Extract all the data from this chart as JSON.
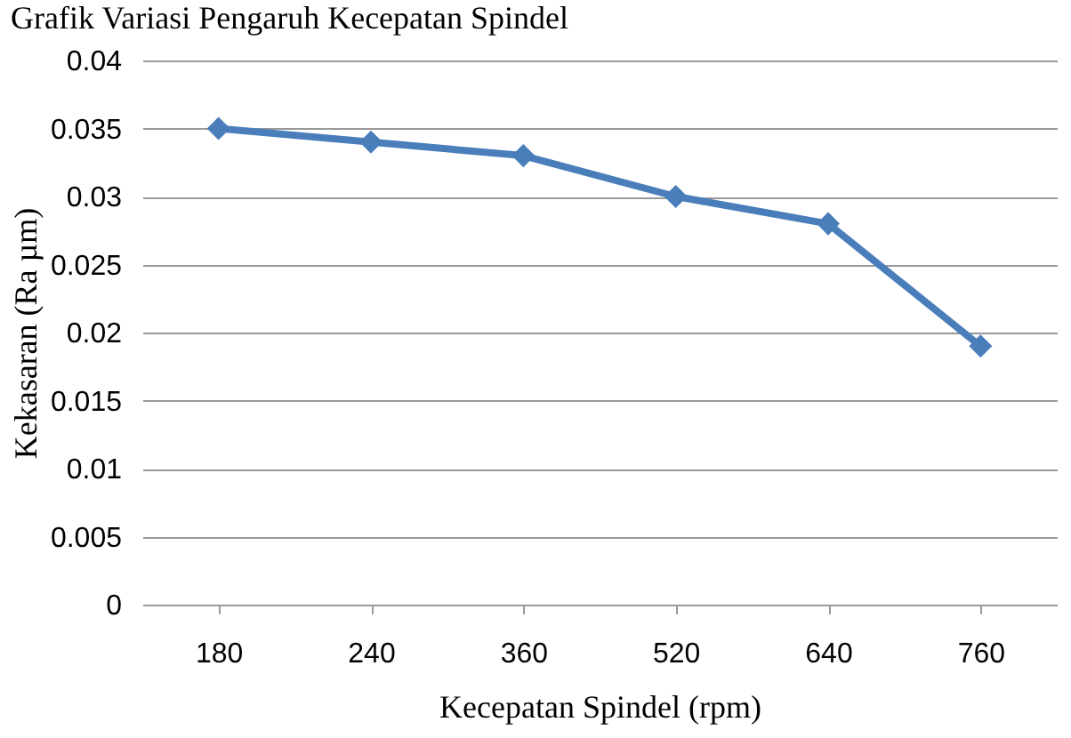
{
  "chart_data": {
    "type": "line",
    "title": "Grafik Variasi Pengaruh Kecepatan Spindel",
    "xlabel": "Kecepatan Spindel (rpm)",
    "ylabel": "Kekasaran (Ra µm)",
    "categories": [
      "180",
      "240",
      "360",
      "520",
      "640",
      "760"
    ],
    "series": [
      {
        "color": "#4a7ebb",
        "values": [
          0.035,
          0.034,
          0.033,
          0.03,
          0.028,
          0.019
        ]
      }
    ],
    "ylim": [
      0,
      0.04
    ],
    "yticks": [
      0,
      0.005,
      0.01,
      0.015,
      0.02,
      0.025,
      0.03,
      0.035,
      0.04
    ],
    "grid": "y",
    "marker": "diamond",
    "line_style": "solid"
  }
}
